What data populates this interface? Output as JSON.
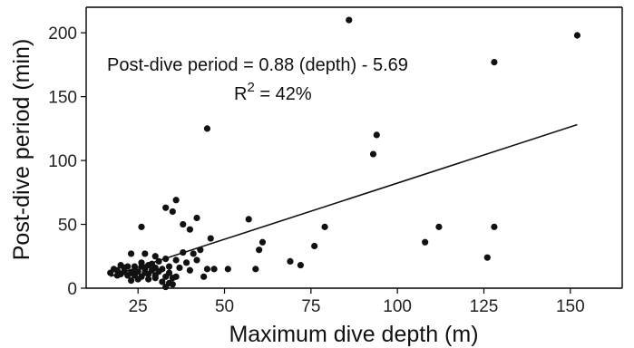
{
  "chart_data": {
    "type": "scatter",
    "xlabel": "Maximum dive depth (m)",
    "ylabel": "Post-dive period (min)",
    "xlim": [
      10,
      165
    ],
    "ylim": [
      0,
      220
    ],
    "xticks": [
      25,
      50,
      75,
      100,
      125,
      150
    ],
    "yticks": [
      0,
      50,
      100,
      150,
      200
    ],
    "xtick_labels": [
      "25",
      "50",
      "75",
      "100",
      "125",
      "150"
    ],
    "ytick_labels": [
      "0",
      "50",
      "100",
      "150",
      "200"
    ],
    "grid": false,
    "annotations": {
      "equation": "Post-dive period = 0.88 (depth) - 5.69",
      "r2_prefix": "R",
      "r2_exp": "2",
      "r2_value": " = 42%"
    },
    "trendline": {
      "slope": 0.88,
      "intercept": -5.69,
      "x_range": [
        17,
        152
      ]
    },
    "points": [
      [
        86,
        210
      ],
      [
        152,
        198
      ],
      [
        128,
        177
      ],
      [
        45,
        125
      ],
      [
        94,
        120
      ],
      [
        93,
        105
      ],
      [
        36,
        69
      ],
      [
        33,
        63
      ],
      [
        35,
        60
      ],
      [
        42,
        55
      ],
      [
        57,
        54
      ],
      [
        38,
        50
      ],
      [
        26,
        48
      ],
      [
        79,
        48
      ],
      [
        112,
        48
      ],
      [
        128,
        48
      ],
      [
        40,
        46
      ],
      [
        46,
        39
      ],
      [
        61,
        36
      ],
      [
        108,
        36
      ],
      [
        76,
        33
      ],
      [
        60,
        30
      ],
      [
        43,
        30
      ],
      [
        38,
        28
      ],
      [
        41,
        27
      ],
      [
        23,
        27
      ],
      [
        27,
        27
      ],
      [
        30,
        25
      ],
      [
        126,
        24
      ],
      [
        33,
        23
      ],
      [
        36,
        22
      ],
      [
        69,
        21
      ],
      [
        39,
        20
      ],
      [
        72,
        18
      ],
      [
        20,
        18
      ],
      [
        22,
        17
      ],
      [
        24,
        17
      ],
      [
        26,
        17
      ],
      [
        28,
        18
      ],
      [
        30,
        16
      ],
      [
        32,
        15
      ],
      [
        45,
        15
      ],
      [
        47,
        15
      ],
      [
        51,
        15
      ],
      [
        59,
        15
      ],
      [
        18,
        15
      ],
      [
        19,
        14
      ],
      [
        21,
        13
      ],
      [
        23,
        12
      ],
      [
        25,
        13
      ],
      [
        27,
        12
      ],
      [
        29,
        14
      ],
      [
        31,
        13
      ],
      [
        34,
        12
      ],
      [
        17,
        12
      ],
      [
        20,
        11
      ],
      [
        22,
        10
      ],
      [
        24,
        10
      ],
      [
        26,
        9
      ],
      [
        28,
        11
      ],
      [
        30,
        10
      ],
      [
        33,
        9
      ],
      [
        36,
        9
      ],
      [
        44,
        9
      ],
      [
        35,
        8
      ],
      [
        28,
        7
      ],
      [
        25,
        7
      ],
      [
        23,
        6
      ],
      [
        32,
        5
      ],
      [
        34,
        4
      ],
      [
        35,
        3
      ],
      [
        33,
        1
      ],
      [
        21,
        16
      ],
      [
        24,
        14
      ],
      [
        26,
        20
      ],
      [
        29,
        19
      ],
      [
        31,
        21
      ],
      [
        34,
        17
      ],
      [
        37,
        16
      ],
      [
        40,
        14
      ],
      [
        42,
        22
      ],
      [
        19,
        10
      ],
      [
        27,
        15
      ],
      [
        30,
        8
      ]
    ]
  }
}
